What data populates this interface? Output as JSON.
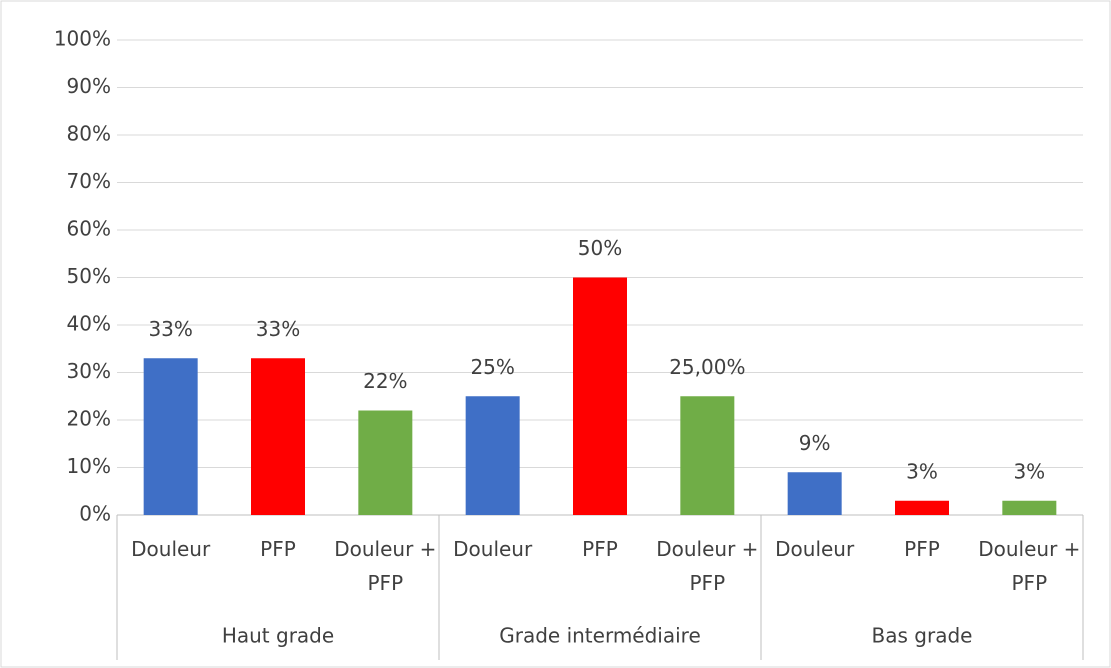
{
  "chart_data": {
    "type": "bar",
    "categories": [
      "Haut grade",
      "Grade intermédiaire",
      "Bas grade"
    ],
    "series": [
      {
        "name": "Douleur",
        "color": "#3f6fc6",
        "values": [
          33,
          25,
          9
        ],
        "value_labels": [
          "33%",
          "25%",
          "9%"
        ]
      },
      {
        "name": "PFP",
        "color": "#ff0000",
        "values": [
          33,
          50,
          3
        ],
        "value_labels": [
          "33%",
          "50%",
          "3%"
        ]
      },
      {
        "name": "Douleur + PFP",
        "color": "#70ad47",
        "values": [
          22,
          25,
          3
        ],
        "value_labels": [
          "22%",
          "25,00%",
          "3%"
        ]
      }
    ],
    "ylim": [
      0,
      100
    ],
    "yticks": [
      {
        "value": 0,
        "label": "0%"
      },
      {
        "value": 10,
        "label": "10%"
      },
      {
        "value": 20,
        "label": "20%"
      },
      {
        "value": 30,
        "label": "30%"
      },
      {
        "value": 40,
        "label": "40%"
      },
      {
        "value": 50,
        "label": "50%"
      },
      {
        "value": 60,
        "label": "60%"
      },
      {
        "value": 70,
        "label": "70%"
      },
      {
        "value": 80,
        "label": "80%"
      },
      {
        "value": 90,
        "label": "90%"
      },
      {
        "value": 100,
        "label": "100%"
      }
    ],
    "grid": true
  }
}
